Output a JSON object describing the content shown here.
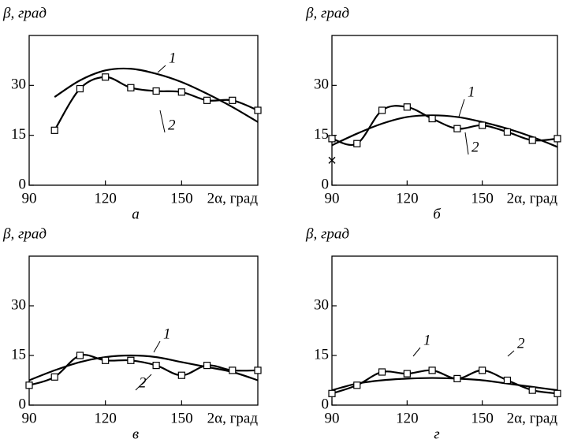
{
  "chart_data": [
    {
      "type": "line",
      "caption": "а",
      "ylabel": "β, град",
      "xlabel": "2α, град",
      "xlim": [
        90,
        180
      ],
      "ylim": [
        0,
        45
      ],
      "xticks": [
        90,
        120,
        150
      ],
      "yticks": [
        0,
        15,
        30
      ],
      "x": [
        100,
        110,
        120,
        130,
        140,
        150,
        160,
        170,
        180
      ],
      "series": [
        {
          "name": "1",
          "color": "#000000",
          "values": [
            26.5,
            31.5,
            34.5,
            35,
            33.5,
            31,
            27.5,
            23.5,
            19
          ]
        },
        {
          "name": "2",
          "color": "#000000",
          "marker": "square",
          "values": [
            16.5,
            29,
            32.5,
            29.3,
            28.3,
            28,
            25.5,
            25.5,
            22.5
          ]
        }
      ]
    },
    {
      "type": "line",
      "caption": "б",
      "ylabel": "β, град",
      "xlabel": "2α, град",
      "xlim": [
        90,
        180
      ],
      "ylim": [
        0,
        45
      ],
      "xticks": [
        90,
        120,
        150
      ],
      "yticks": [
        0,
        15,
        30
      ],
      "x": [
        90,
        100,
        110,
        120,
        130,
        140,
        150,
        160,
        170,
        180
      ],
      "series": [
        {
          "name": "1",
          "color": "#000000",
          "values": [
            12,
            15.5,
            18.5,
            20.5,
            21,
            20.5,
            19,
            17,
            14.5,
            11.5
          ]
        },
        {
          "name": "2",
          "color": "#000000",
          "marker": "square",
          "values": [
            14,
            12.5,
            22.5,
            23.5,
            20,
            17,
            18,
            16,
            13.5,
            14
          ]
        }
      ],
      "cross": {
        "x": 90,
        "y": 7.5
      }
    },
    {
      "type": "line",
      "caption": "в",
      "ylabel": "β, град",
      "xlabel": "2α, град",
      "xlim": [
        90,
        180
      ],
      "ylim": [
        0,
        45
      ],
      "xticks": [
        90,
        120,
        150
      ],
      "yticks": [
        0,
        15,
        30
      ],
      "x": [
        90,
        100,
        110,
        120,
        130,
        140,
        150,
        160,
        170,
        180
      ],
      "series": [
        {
          "name": "1",
          "color": "#000000",
          "values": [
            7.5,
            10.5,
            13,
            14.5,
            15,
            14.5,
            13,
            11.5,
            10,
            7.5
          ]
        },
        {
          "name": "2",
          "color": "#000000",
          "marker": "square",
          "values": [
            6,
            8.5,
            15,
            13.5,
            13.5,
            12,
            9,
            12,
            10.5,
            10.5
          ]
        }
      ]
    },
    {
      "type": "line",
      "caption": "г",
      "ylabel": "β, град",
      "xlabel": "2α, град",
      "xlim": [
        90,
        180
      ],
      "ylim": [
        0,
        45
      ],
      "xticks": [
        90,
        120,
        150
      ],
      "yticks": [
        0,
        15,
        30
      ],
      "x": [
        90,
        100,
        110,
        120,
        130,
        140,
        150,
        160,
        170,
        180
      ],
      "series": [
        {
          "name": "1",
          "color": "#000000",
          "values": [
            4.5,
            6.5,
            7.5,
            8,
            8.2,
            8,
            7.5,
            6.5,
            5.5,
            4.5
          ]
        },
        {
          "name": "2",
          "color": "#000000",
          "marker": "square",
          "values": [
            3.5,
            6,
            10,
            9.5,
            10.5,
            8,
            10.5,
            7.5,
            4.5,
            3.5
          ]
        }
      ]
    }
  ]
}
